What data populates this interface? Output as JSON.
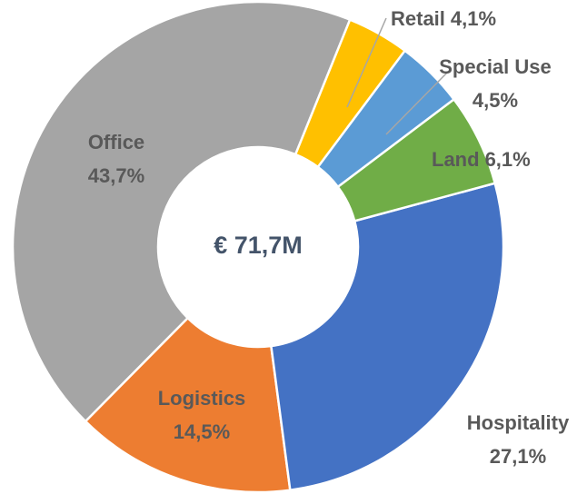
{
  "chart_data": {
    "type": "donut",
    "center_label": "€ 71,7M",
    "categories": [
      "Retail",
      "Special Use",
      "Land",
      "Hospitality",
      "Logistics",
      "Office"
    ],
    "values": [
      4.1,
      4.5,
      6.1,
      27.1,
      14.5,
      43.7
    ],
    "value_labels": [
      "4,1%",
      "4,5%",
      "6,1%",
      "27,1%",
      "14,5%",
      "43,7%"
    ],
    "colors": [
      "#ffc000",
      "#5b9bd5",
      "#70ad47",
      "#4472c4",
      "#ed7d31",
      "#a5a5a5"
    ]
  }
}
